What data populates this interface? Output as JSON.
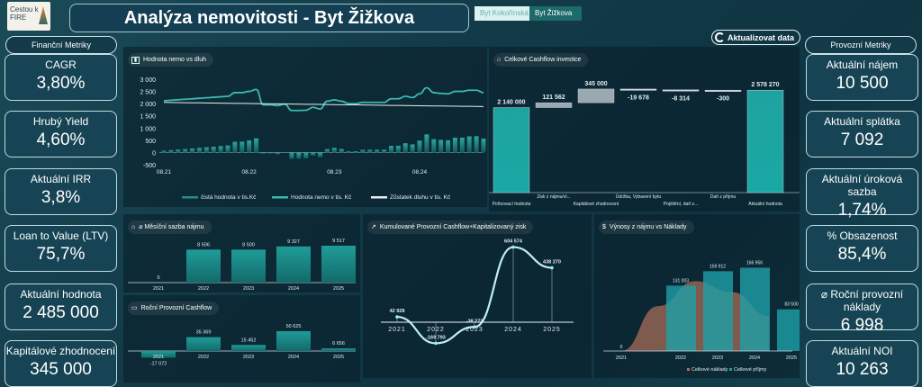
{
  "header": {
    "logo_text": "Cestou k FIRE",
    "title": "Analýza nemovitosti - Byt Žižkova",
    "tabs": [
      {
        "label": "Byt Kokořínská"
      },
      {
        "label": "Byt Žižkova"
      }
    ],
    "refresh_label": "Aktualizovat data"
  },
  "left": {
    "heading": "Finanční Metriky",
    "cards": [
      {
        "label": "CAGR",
        "value": "3,80%"
      },
      {
        "label": "Hrubý Yield",
        "value": "4,60%"
      },
      {
        "label": "Aktuální IRR",
        "value": "3,8%"
      },
      {
        "label": "Loan to Value (LTV)",
        "value": "75,7%"
      },
      {
        "label": "Aktuální hodnota",
        "value": "2 485 000"
      },
      {
        "label": "Kapitálové zhodnocení",
        "value": "345 000"
      }
    ]
  },
  "right": {
    "heading": "Provozní Metriky",
    "cards": [
      {
        "label": "Aktuální nájem",
        "value": "10 500"
      },
      {
        "label": "Aktuální splátka",
        "value": "7 092"
      },
      {
        "label": "Aktuální úroková sazba",
        "value": "1,74%"
      },
      {
        "label": "% Obsazenost",
        "value": "85,4%"
      },
      {
        "label": "⌀ Roční provozní náklady",
        "value": "6 998"
      },
      {
        "label": "Aktuální NOI",
        "value": "10 263"
      }
    ]
  },
  "colors": {
    "teal": "#1fa3a0",
    "teal_light": "#3cc8c4",
    "line": "#3bb8b0",
    "debt": "#e6eef0",
    "cost": "#b0705a"
  },
  "chart_data": [
    {
      "id": "value-debt",
      "type": "line",
      "title": "Hodnota nemo vs dluh",
      "ylim": [
        -500,
        3000
      ],
      "yticks": [
        "3 000",
        "2 500",
        "2 000",
        "1 500",
        "1 000",
        "500",
        "0",
        "-500"
      ],
      "ytick_values": [
        3000,
        2500,
        2000,
        1500,
        1000,
        500,
        0,
        -500
      ],
      "xticks": [
        {
          "i": 0,
          "label": "08.21"
        },
        {
          "i": 12,
          "label": "08.22"
        },
        {
          "i": 24,
          "label": "08.23"
        },
        {
          "i": 36,
          "label": "08.24"
        }
      ],
      "legend": [
        "čistá hodnota v tis.Kč",
        "Hodnota nemo v tis. Kč",
        "Zůstatek dluhu v tis. Kč"
      ],
      "value": [
        2120,
        2140,
        2160,
        2180,
        2200,
        2220,
        2240,
        2260,
        2280,
        2300,
        2450,
        2450,
        2500,
        2580,
        1950,
        1950,
        1920,
        1980,
        1720,
        1720,
        1730,
        1850,
        1780,
        2100,
        2150,
        2100,
        2000,
        2000,
        2050,
        2050,
        2050,
        2050,
        2200,
        2200,
        2300,
        2250,
        2400,
        2650,
        2450,
        2420,
        2400,
        2500,
        2500,
        2550,
        2550,
        2450
      ],
      "debt": [
        2050,
        2046,
        2042,
        2039,
        2035,
        2031,
        2027,
        2024,
        2020,
        2016,
        2012,
        2008,
        2005,
        2001,
        1997,
        1993,
        1990,
        1986,
        1982,
        1978,
        1974,
        1971,
        1967,
        1963,
        1959,
        1956,
        1952,
        1948,
        1944,
        1940,
        1937,
        1933,
        1929,
        1925,
        1922,
        1918,
        1914,
        1910,
        1906,
        1903,
        1899,
        1895,
        1891,
        1888,
        1884,
        1880
      ]
    },
    {
      "id": "waterfall",
      "type": "bar",
      "title": "Celkové Cashflow investice",
      "categories": [
        "Pořizovací hodnota",
        "Zisk z nájmu/vl...",
        "Kapitálové zhodnocení",
        "Údržba, Vybavení bytu",
        "Pojištění, daň z...",
        "Daň z příjmu",
        "Aktuální hodnota"
      ],
      "values": [
        2140000,
        121562,
        345000,
        -19678,
        -8314,
        -300,
        2578270
      ],
      "labels": [
        "2 140 000",
        "121 562",
        "345 000",
        "-19 678",
        "-8 314",
        "-300",
        "2 578 270"
      ],
      "total": [
        true,
        false,
        false,
        false,
        false,
        false,
        true
      ]
    },
    {
      "id": "rent",
      "type": "bar",
      "title": "⌀ Měsíční sazba nájmu",
      "categories": [
        "2021",
        "2022",
        "2023",
        "2024",
        "2025"
      ],
      "values": [
        0,
        8506,
        8500,
        9327,
        9517
      ],
      "labels": [
        "0",
        "8 506",
        "8 500",
        "9 327",
        "9 517"
      ]
    },
    {
      "id": "cashflow",
      "type": "bar",
      "title": "Roční Provozní Cashflow",
      "categories": [
        "2021",
        "2022",
        "2023",
        "2024",
        "2025"
      ],
      "values": [
        -17072,
        35369,
        15452,
        50625,
        6656
      ],
      "labels": [
        "-17 072",
        "35 369",
        "15 452",
        "50 625",
        "6 656"
      ]
    },
    {
      "id": "cumulative",
      "type": "line",
      "title": "Kumulované Provozní Cashflow+Kapitalizovaný zisk",
      "categories": [
        "2021",
        "2022",
        "2023",
        "2024",
        "2025"
      ],
      "values": [
        42928,
        -169793,
        -38273,
        604574,
        438270
      ],
      "labels": [
        "42 928",
        "-169 793",
        "-38 273",
        "604 574",
        "438 270"
      ]
    },
    {
      "id": "revenue",
      "type": "bar",
      "title": "Výnosy  z nájmu vs Náklady",
      "categories": [
        "2021",
        "2022",
        "2023",
        "2024",
        "2025"
      ],
      "series": [
        {
          "name": "Celkové náklady",
          "type": "area",
          "values": [
            0,
            90000,
            140000,
            118000,
            70000
          ]
        },
        {
          "name": "Celkové příjmy",
          "type": "bar",
          "values": [
            0,
            131003,
            159912,
            166956,
            83500
          ],
          "labels": [
            "0",
            "131 003",
            "159 912",
            "166 956",
            "83 500"
          ]
        }
      ]
    }
  ]
}
